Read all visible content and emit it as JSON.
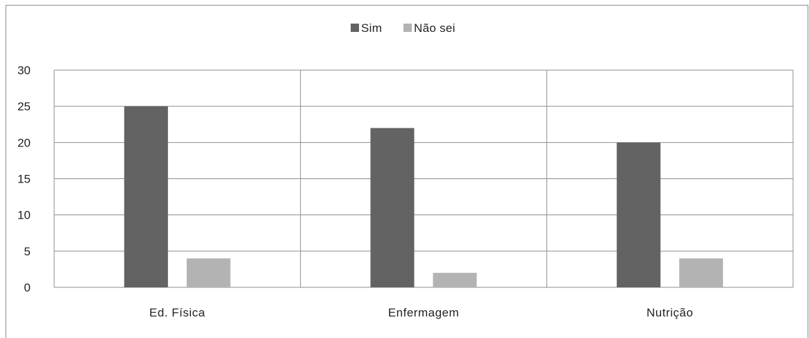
{
  "chart_data": {
    "type": "bar",
    "categories": [
      "Ed. Física",
      "Enfermagem",
      "Nutrição"
    ],
    "series": [
      {
        "name": "Sim",
        "values": [
          25,
          22,
          20
        ],
        "color": "#636363"
      },
      {
        "name": "Não sei",
        "values": [
          4,
          2,
          4
        ],
        "color": "#b3b3b3"
      }
    ],
    "title": "",
    "xlabel": "",
    "ylabel": "",
    "ylim": [
      0,
      30
    ],
    "yticks": [
      0,
      5,
      10,
      15,
      20,
      25,
      30
    ],
    "grid": true,
    "legend_position": "top-center",
    "grid_color": "#8c8c8c",
    "axis_color": "#8c8c8c"
  }
}
